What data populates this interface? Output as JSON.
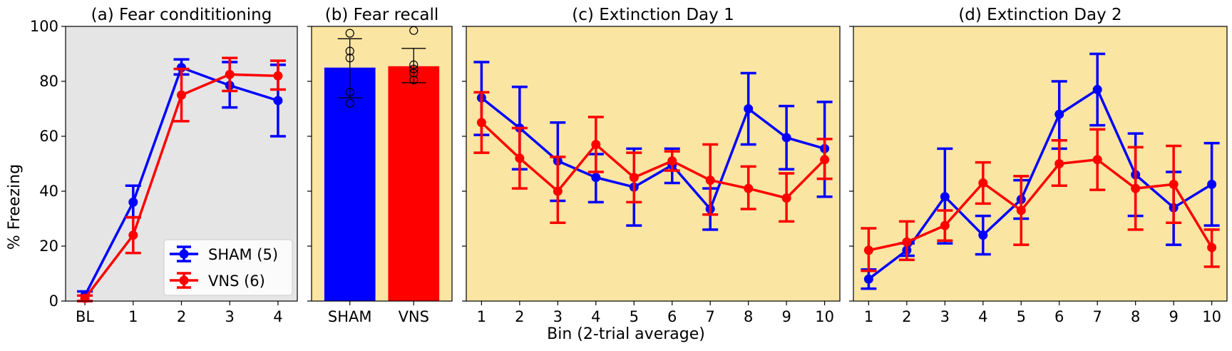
{
  "figure": {
    "ylabel": "% Freezing",
    "xlabel": "Bin (2-trial average)"
  },
  "colors": {
    "sham": "#0000ff",
    "vns": "#ff0000",
    "panel_a_bg": "#e5e5e5",
    "panel_bg": "#fbe5a3"
  },
  "chart_data": [
    {
      "id": "a",
      "type": "line",
      "title": "(a) Fear condititioning",
      "categories": [
        "BL",
        "1",
        "2",
        "3",
        "4"
      ],
      "ylim": [
        0,
        100
      ],
      "yticks": [
        0,
        20,
        40,
        60,
        80,
        100
      ],
      "legend": {
        "placement": "lower-right"
      },
      "series": [
        {
          "name": "SHAM (5)",
          "values": [
            2,
            36,
            85,
            78.5,
            73
          ],
          "err_low": [
            0,
            30.5,
            82.5,
            70.5,
            60
          ],
          "err_high": [
            3.5,
            42,
            88,
            87,
            86
          ]
        },
        {
          "name": "VNS (6)",
          "values": [
            1,
            24,
            75,
            82.5,
            82
          ],
          "err_low": [
            0,
            17.5,
            65.5,
            76.5,
            77
          ],
          "err_high": [
            2,
            30.5,
            84.5,
            88.5,
            87.5
          ]
        }
      ]
    },
    {
      "id": "b",
      "type": "bar",
      "title": "(b) Fear recall",
      "categories": [
        "SHAM",
        "VNS"
      ],
      "ylim": [
        0,
        100
      ],
      "values": [
        85,
        85.5
      ],
      "err_low": [
        74,
        79.5
      ],
      "err_high": [
        95.5,
        92
      ],
      "points": [
        [
          72,
          76,
          88.5,
          91,
          97.5
        ],
        [
          80.5,
          83,
          84.5,
          86,
          98.5
        ]
      ]
    },
    {
      "id": "c",
      "type": "line",
      "title": "(c) Extinction Day 1",
      "categories": [
        "1",
        "2",
        "3",
        "4",
        "5",
        "6",
        "7",
        "8",
        "9",
        "10"
      ],
      "ylim": [
        0,
        100
      ],
      "series": [
        {
          "values": [
            74,
            63,
            51,
            45,
            41.5,
            49.5,
            33.5,
            70,
            59.5,
            55.5
          ],
          "err_low": [
            60.5,
            48,
            36.5,
            36,
            27.5,
            43,
            26,
            57,
            48,
            38
          ],
          "err_high": [
            87,
            78,
            65,
            53.5,
            55.5,
            55.5,
            41,
            83,
            71,
            72.5
          ]
        },
        {
          "values": [
            65,
            52,
            40,
            57,
            45,
            51,
            44,
            41,
            37.5,
            51.5
          ],
          "err_low": [
            54,
            41,
            28.5,
            47,
            36,
            47.5,
            31.5,
            33.5,
            29,
            44.5
          ],
          "err_high": [
            76,
            63,
            52.5,
            67,
            54,
            54.5,
            57,
            49,
            46.5,
            59
          ]
        }
      ]
    },
    {
      "id": "d",
      "type": "line",
      "title": "(d) Extinction Day 2",
      "categories": [
        "1",
        "2",
        "3",
        "4",
        "5",
        "6",
        "7",
        "8",
        "9",
        "10"
      ],
      "ylim": [
        0,
        100
      ],
      "series": [
        {
          "values": [
            8,
            18.5,
            38,
            24,
            37,
            68,
            77,
            46,
            34,
            42.5
          ],
          "err_low": [
            4.5,
            16.5,
            21,
            17,
            30,
            55.5,
            64,
            31,
            20.5,
            27.5
          ],
          "err_high": [
            11.5,
            21,
            55.5,
            31,
            44,
            80,
            90,
            61,
            47,
            57.5
          ]
        },
        {
          "values": [
            18.5,
            21.5,
            27.5,
            43,
            33,
            50,
            51.5,
            41,
            42.5,
            19.5
          ],
          "err_low": [
            11,
            15,
            22,
            35.5,
            20.5,
            42,
            40.5,
            26,
            28.5,
            12.5
          ],
          "err_high": [
            26.5,
            29,
            33,
            50.5,
            45.5,
            58.5,
            62.5,
            56,
            56.5,
            26
          ]
        }
      ]
    }
  ]
}
